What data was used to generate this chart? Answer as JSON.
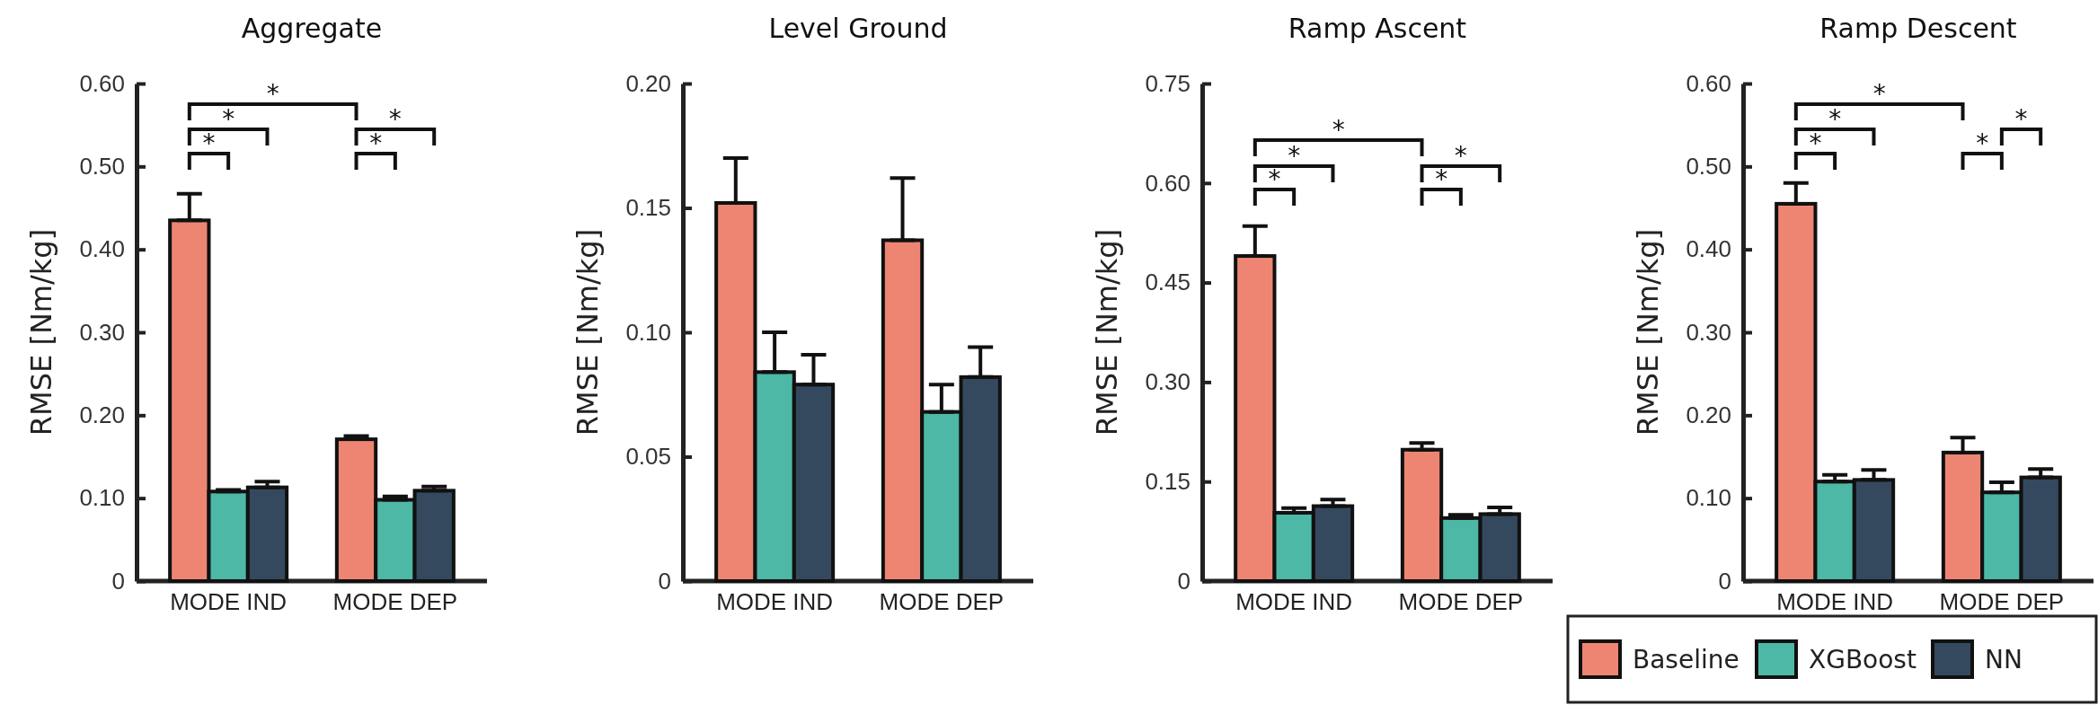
{
  "chart_data": [
    {
      "type": "bar",
      "title": "Aggregate",
      "ylabel": "RMSE [Nm/kg]",
      "categories": [
        "MODE IND",
        "MODE DEP"
      ],
      "series": [
        {
          "color": "#ee8572",
          "values": [
            0.435,
            0.171
          ],
          "errors": [
            [
              0.435,
              0.467
            ],
            [
              0.171,
              0.175
            ]
          ]
        },
        {
          "color": "#4db8a6",
          "values": [
            0.108,
            0.098
          ],
          "errors": [
            [
              0.108,
              0.11
            ],
            [
              0.098,
              0.102
            ]
          ]
        },
        {
          "color": "#34495e",
          "values": [
            0.113,
            0.109
          ],
          "errors": [
            [
              0.113,
              0.12
            ],
            [
              0.109,
              0.114
            ]
          ]
        }
      ],
      "ylim": [
        0,
        0.6
      ],
      "yticks": [
        {
          "value": 0,
          "label": "0"
        },
        {
          "value": 0.1,
          "label": "0.10"
        },
        {
          "value": 0.2,
          "label": "0.20"
        },
        {
          "value": 0.3,
          "label": "0.30"
        },
        {
          "value": 0.4,
          "label": "0.40"
        },
        {
          "value": 0.5,
          "label": "0.50"
        },
        {
          "value": 0.6,
          "label": "0.60"
        }
      ],
      "annotations": [
        "*",
        "*",
        "*",
        "*",
        "*"
      ]
    },
    {
      "type": "bar",
      "title": "Level Ground",
      "ylabel": "RMSE [Nm/kg]",
      "categories": [
        "MODE IND",
        "MODE DEP"
      ],
      "series": [
        {
          "color": "#ee8572",
          "values": [
            0.152,
            0.137
          ],
          "errors": [
            [
              0.152,
              0.17
            ],
            [
              0.137,
              0.162
            ]
          ]
        },
        {
          "color": "#4db8a6",
          "values": [
            0.084,
            0.068
          ],
          "errors": [
            [
              0.084,
              0.1
            ],
            [
              0.068,
              0.079
            ]
          ]
        },
        {
          "color": "#34495e",
          "values": [
            0.079,
            0.082
          ],
          "errors": [
            [
              0.079,
              0.091
            ],
            [
              0.082,
              0.094
            ]
          ]
        }
      ],
      "ylim": [
        0,
        0.2
      ],
      "yticks": [
        {
          "value": 0,
          "label": "0"
        },
        {
          "value": 0.05,
          "label": "0.05"
        },
        {
          "value": 0.1,
          "label": "0.10"
        },
        {
          "value": 0.15,
          "label": "0.15"
        },
        {
          "value": 0.2,
          "label": "0.20"
        }
      ]
    },
    {
      "type": "bar",
      "title": "Ramp Ascent",
      "ylabel": "RMSE [Nm/kg]",
      "categories": [
        "MODE IND",
        "MODE DEP"
      ],
      "series": [
        {
          "color": "#ee8572",
          "values": [
            0.49,
            0.198
          ],
          "errors": [
            [
              0.49,
              0.535
            ],
            [
              0.198,
              0.208
            ]
          ]
        },
        {
          "color": "#4db8a6",
          "values": [
            0.103,
            0.095
          ],
          "errors": [
            [
              0.103,
              0.11
            ],
            [
              0.095,
              0.1
            ]
          ]
        },
        {
          "color": "#34495e",
          "values": [
            0.113,
            0.101
          ],
          "errors": [
            [
              0.113,
              0.123
            ],
            [
              0.101,
              0.111
            ]
          ]
        }
      ],
      "ylim": [
        0,
        0.75
      ],
      "yticks": [
        {
          "value": 0,
          "label": "0"
        },
        {
          "value": 0.15,
          "label": "0.15"
        },
        {
          "value": 0.3,
          "label": "0.30"
        },
        {
          "value": 0.45,
          "label": "0.45"
        },
        {
          "value": 0.6,
          "label": "0.60"
        },
        {
          "value": 0.75,
          "label": "0.75"
        }
      ],
      "annotations": [
        "*",
        "*",
        "*",
        "*",
        "*"
      ]
    },
    {
      "type": "bar",
      "title": "Ramp Descent",
      "ylabel": "RMSE [Nm/kg]",
      "categories": [
        "MODE IND",
        "MODE DEP"
      ],
      "series": [
        {
          "name": "Baseline",
          "color": "#ee8572",
          "values": [
            0.455,
            0.155
          ],
          "errors": [
            [
              0.455,
              0.48
            ],
            [
              0.155,
              0.173
            ]
          ]
        },
        {
          "name": "XGBoost",
          "color": "#4db8a6",
          "values": [
            0.12,
            0.107
          ],
          "errors": [
            [
              0.12,
              0.128
            ],
            [
              0.107,
              0.119
            ]
          ]
        },
        {
          "name": "NN",
          "color": "#34495e",
          "values": [
            0.122,
            0.125
          ],
          "errors": [
            [
              0.122,
              0.134
            ],
            [
              0.125,
              0.135
            ]
          ]
        }
      ],
      "ylim": [
        0,
        0.6
      ],
      "yticks": [
        {
          "value": 0,
          "label": "0"
        },
        {
          "value": 0.1,
          "label": "0.10"
        },
        {
          "value": 0.2,
          "label": "0.20"
        },
        {
          "value": 0.3,
          "label": "0.30"
        },
        {
          "value": 0.4,
          "label": "0.40"
        },
        {
          "value": 0.5,
          "label": "0.50"
        },
        {
          "value": 0.6,
          "label": "0.60"
        }
      ],
      "annotations": [
        "*",
        "*",
        "*",
        "*",
        "*"
      ],
      "legend": "bottom"
    }
  ]
}
